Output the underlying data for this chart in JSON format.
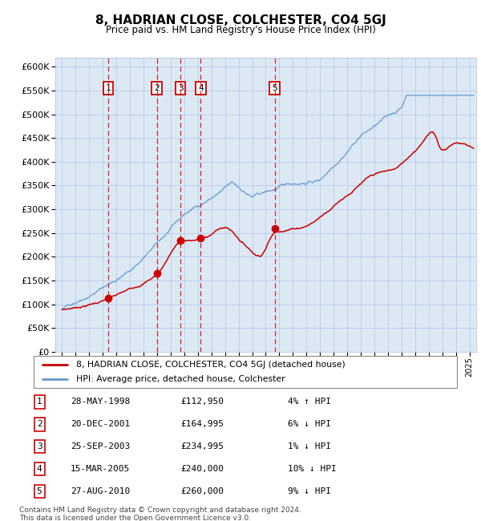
{
  "title": "8, HADRIAN CLOSE, COLCHESTER, CO4 5GJ",
  "subtitle": "Price paid vs. HM Land Registry's House Price Index (HPI)",
  "plot_bg_color": "#dce9f5",
  "ylim": [
    0,
    620000
  ],
  "yticks": [
    0,
    50000,
    100000,
    150000,
    200000,
    250000,
    300000,
    350000,
    400000,
    450000,
    500000,
    550000,
    600000
  ],
  "xlim_start": 1994.5,
  "xlim_end": 2025.5,
  "sales": [
    {
      "num": 1,
      "date": "28-MAY-1998",
      "price": 112950,
      "year": 1998.38
    },
    {
      "num": 2,
      "date": "20-DEC-2001",
      "price": 164995,
      "year": 2001.97
    },
    {
      "num": 3,
      "date": "25-SEP-2003",
      "price": 234995,
      "year": 2003.73
    },
    {
      "num": 4,
      "date": "15-MAR-2005",
      "price": 240000,
      "year": 2005.21
    },
    {
      "num": 5,
      "date": "27-AUG-2010",
      "price": 260000,
      "year": 2010.65
    }
  ],
  "legend_label_red": "8, HADRIAN CLOSE, COLCHESTER, CO4 5GJ (detached house)",
  "legend_label_blue": "HPI: Average price, detached house, Colchester",
  "footer": "Contains HM Land Registry data © Crown copyright and database right 2024.\nThis data is licensed under the Open Government Licence v3.0.",
  "table_rows": [
    [
      "1",
      "28-MAY-1998",
      "£112,950",
      "4% ↑ HPI"
    ],
    [
      "2",
      "20-DEC-2001",
      "£164,995",
      "6% ↓ HPI"
    ],
    [
      "3",
      "25-SEP-2003",
      "£234,995",
      "1% ↓ HPI"
    ],
    [
      "4",
      "15-MAR-2005",
      "£240,000",
      "10% ↓ HPI"
    ],
    [
      "5",
      "27-AUG-2010",
      "£260,000",
      "9% ↓ HPI"
    ]
  ],
  "red_color": "#cc0000",
  "blue_color": "#6699cc",
  "grid_color": "#aabbdd"
}
